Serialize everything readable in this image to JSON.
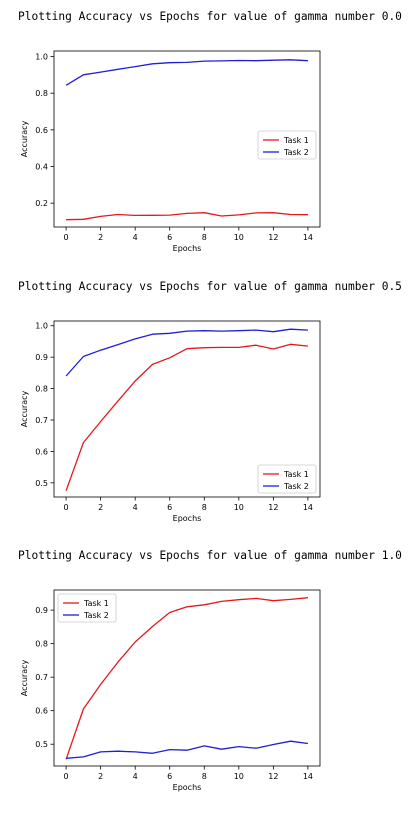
{
  "chart_data": [
    {
      "type": "line",
      "heading": "Plotting Accuracy vs Epochs for value of gamma number 0.0",
      "xlabel": "Epochs",
      "ylabel": "Accuracy",
      "x": [
        0,
        1,
        2,
        3,
        4,
        5,
        6,
        7,
        8,
        9,
        10,
        11,
        12,
        13,
        14
      ],
      "xticks": [
        "0",
        "2",
        "4",
        "6",
        "8",
        "10",
        "12",
        "14"
      ],
      "yticks": [
        "0.2",
        "0.4",
        "0.6",
        "0.8",
        "1.0"
      ],
      "xlim": [
        -0.7,
        14.7
      ],
      "ylim": [
        0.07,
        1.03
      ],
      "legend_position": "center-right",
      "series": [
        {
          "name": "Task 1",
          "color": "#e31a1c",
          "values": [
            0.11,
            0.112,
            0.128,
            0.138,
            0.133,
            0.134,
            0.135,
            0.144,
            0.148,
            0.13,
            0.136,
            0.147,
            0.148,
            0.138,
            0.137
          ]
        },
        {
          "name": "Task 2",
          "color": "#1f1fd6",
          "values": [
            0.843,
            0.9,
            0.915,
            0.93,
            0.945,
            0.96,
            0.966,
            0.968,
            0.975,
            0.976,
            0.978,
            0.977,
            0.98,
            0.982,
            0.977
          ]
        }
      ]
    },
    {
      "type": "line",
      "heading": "Plotting Accuracy vs Epochs for value of gamma number 0.5",
      "xlabel": "Epochs",
      "ylabel": "Accuracy",
      "x": [
        0,
        1,
        2,
        3,
        4,
        5,
        6,
        7,
        8,
        9,
        10,
        11,
        12,
        13,
        14
      ],
      "xticks": [
        "0",
        "2",
        "4",
        "6",
        "8",
        "10",
        "12",
        "14"
      ],
      "yticks": [
        "0.5",
        "0.6",
        "0.7",
        "0.8",
        "0.9",
        "1.0"
      ],
      "xlim": [
        -0.7,
        14.7
      ],
      "ylim": [
        0.455,
        1.015
      ],
      "legend_position": "lower-right",
      "series": [
        {
          "name": "Task 1",
          "color": "#e31a1c",
          "values": [
            0.475,
            0.628,
            0.695,
            0.76,
            0.824,
            0.877,
            0.898,
            0.927,
            0.93,
            0.931,
            0.931,
            0.938,
            0.926,
            0.941,
            0.935
          ]
        },
        {
          "name": "Task 2",
          "color": "#1f1fd6",
          "values": [
            0.84,
            0.902,
            0.922,
            0.94,
            0.958,
            0.973,
            0.976,
            0.983,
            0.984,
            0.983,
            0.984,
            0.986,
            0.981,
            0.989,
            0.986
          ]
        }
      ]
    },
    {
      "type": "line",
      "heading": "Plotting Accuracy vs Epochs for value of gamma number 1.0",
      "xlabel": "Epochs",
      "ylabel": "Accuracy",
      "x": [
        0,
        1,
        2,
        3,
        4,
        5,
        6,
        7,
        8,
        9,
        10,
        11,
        12,
        13,
        14
      ],
      "xticks": [
        "0",
        "2",
        "4",
        "6",
        "8",
        "10",
        "12",
        "14"
      ],
      "yticks": [
        "0.5",
        "0.6",
        "0.7",
        "0.8",
        "0.9"
      ],
      "xlim": [
        -0.7,
        14.7
      ],
      "ylim": [
        0.435,
        0.96
      ],
      "legend_position": "upper-left",
      "series": [
        {
          "name": "Task 1",
          "color": "#e31a1c",
          "values": [
            0.455,
            0.605,
            0.678,
            0.745,
            0.805,
            0.851,
            0.893,
            0.91,
            0.916,
            0.926,
            0.931,
            0.935,
            0.928,
            0.932,
            0.937
          ]
        },
        {
          "name": "Task 2",
          "color": "#1f1fd6",
          "values": [
            0.458,
            0.462,
            0.477,
            0.479,
            0.477,
            0.473,
            0.484,
            0.482,
            0.495,
            0.485,
            0.493,
            0.488,
            0.499,
            0.509,
            0.502
          ]
        }
      ]
    }
  ]
}
